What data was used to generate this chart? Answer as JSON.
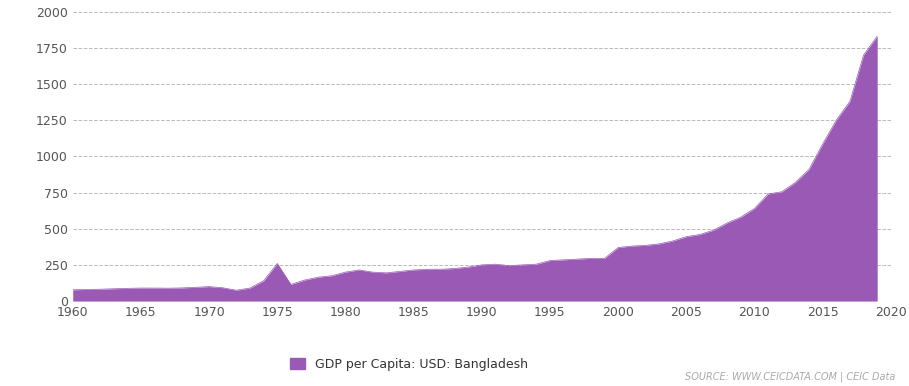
{
  "years": [
    1960,
    1961,
    1962,
    1963,
    1964,
    1965,
    1966,
    1967,
    1968,
    1969,
    1970,
    1971,
    1972,
    1973,
    1974,
    1975,
    1976,
    1977,
    1978,
    1979,
    1980,
    1981,
    1982,
    1983,
    1984,
    1985,
    1986,
    1987,
    1988,
    1989,
    1990,
    1991,
    1992,
    1993,
    1994,
    1995,
    1996,
    1997,
    1998,
    1999,
    2000,
    2001,
    2002,
    2003,
    2004,
    2005,
    2006,
    2007,
    2008,
    2009,
    2010,
    2011,
    2012,
    2013,
    2014,
    2015,
    2016,
    2017,
    2018,
    2019
  ],
  "gdp_per_capita": [
    78,
    80,
    82,
    85,
    88,
    90,
    90,
    89,
    91,
    95,
    100,
    92,
    75,
    90,
    140,
    260,
    115,
    145,
    165,
    175,
    200,
    215,
    200,
    195,
    205,
    215,
    220,
    220,
    225,
    235,
    250,
    255,
    245,
    250,
    255,
    280,
    285,
    290,
    295,
    295,
    370,
    380,
    385,
    395,
    415,
    445,
    460,
    490,
    540,
    580,
    640,
    740,
    755,
    820,
    910,
    1085,
    1250,
    1380,
    1700,
    1830
  ],
  "fill_color": "#9b59b6",
  "fill_alpha": 1.0,
  "line_color": "#9b59b6",
  "background_color": "#ffffff",
  "grid_color": "#bbbbbb",
  "ylim": [
    0,
    2000
  ],
  "xlim": [
    1960,
    2020
  ],
  "yticks": [
    0,
    250,
    500,
    750,
    1000,
    1250,
    1500,
    1750,
    2000
  ],
  "xticks": [
    1960,
    1965,
    1970,
    1975,
    1980,
    1985,
    1990,
    1995,
    2000,
    2005,
    2010,
    2015,
    2020
  ],
  "legend_label": "GDP per Capita: USD: Bangladesh",
  "legend_color": "#9b59b6",
  "source_text": "SOURCE: WWW.CEICDATA.COM | CEIC Data",
  "source_color": "#aaaaaa",
  "source_fontsize": 7.0,
  "tick_fontsize": 9.0,
  "legend_fontsize": 9.0
}
